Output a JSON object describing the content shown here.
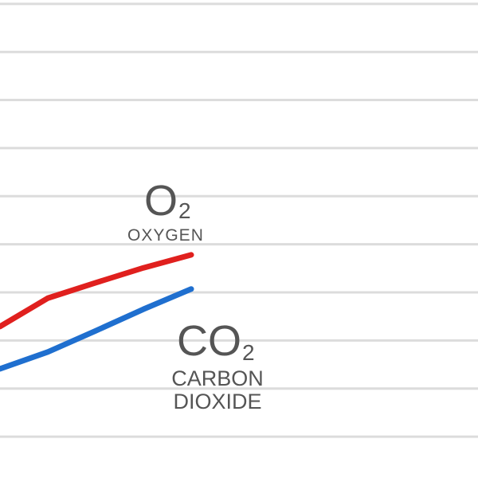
{
  "chart_data": {
    "type": "line",
    "x": [
      0,
      60,
      120,
      180,
      240
    ],
    "series": [
      {
        "color": "#e0201e",
        "values": [
          2.29,
          2.88,
          3.2,
          3.51,
          3.78
        ]
      },
      {
        "color": "#1f6fcf",
        "values": [
          1.41,
          1.76,
          2.2,
          2.65,
          3.07
        ]
      }
    ],
    "xlim": [
      0,
      600
    ],
    "ylim": [
      -0.86,
      9.08
    ],
    "yticks": [
      0,
      1,
      2,
      3,
      4,
      5,
      6,
      7,
      8,
      9
    ],
    "grid": true,
    "annotations": [
      {
        "text": "O",
        "subscript": "2",
        "lines": [
          "OXYGEN"
        ]
      },
      {
        "text": "CO",
        "subscript": "2",
        "lines": [
          "CARBON",
          "DIOXIDE"
        ]
      }
    ]
  }
}
